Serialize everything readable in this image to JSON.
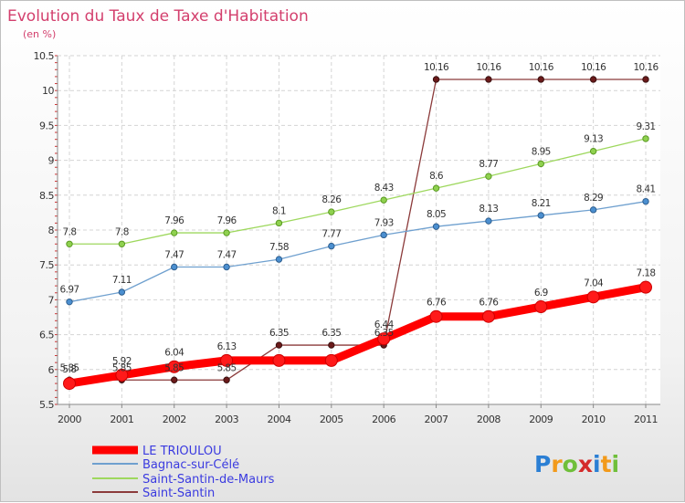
{
  "chart_data": {
    "type": "line",
    "title": "Evolution du Taux de Taxe d'Habitation",
    "subtitle": "(en %)",
    "xlabel": "",
    "ylabel": "",
    "ylim": [
      5.5,
      10.5
    ],
    "yticks": [
      "5.5",
      "6",
      "6.5",
      "7",
      "7.5",
      "8",
      "8.5",
      "9",
      "9.5",
      "10",
      "10.5"
    ],
    "categories": [
      "2000",
      "2001",
      "2002",
      "2003",
      "2004",
      "2005",
      "2006",
      "2007",
      "2008",
      "2009",
      "2010",
      "2011"
    ],
    "grid": true,
    "legend_position": "bottom-left",
    "series": [
      {
        "name": "LE TRIOULOU",
        "color": "#ff0000",
        "values": [
          5.8,
          5.92,
          6.04,
          6.13,
          6.13,
          6.13,
          6.44,
          6.76,
          6.76,
          6.9,
          7.04,
          7.18
        ],
        "labels": [
          "5.8",
          "5.92",
          "6.04",
          "6.13",
          "",
          "",
          "6.44",
          "6.76",
          "6.76",
          "6.9",
          "7.04",
          "7.18"
        ]
      },
      {
        "name": "Bagnac-sur-Célé",
        "color": "#6fa0cf",
        "values": [
          6.97,
          7.11,
          7.47,
          7.47,
          7.58,
          7.77,
          7.93,
          8.05,
          8.13,
          8.21,
          8.29,
          8.41
        ],
        "labels": [
          "6.97",
          "7.11",
          "7.47",
          "7.47",
          "7.58",
          "7.77",
          "7.93",
          "8.05",
          "8.13",
          "8.21",
          "8.29",
          "8.41"
        ]
      },
      {
        "name": "Saint-Santin-de-Maurs",
        "color": "#9ed85e",
        "values": [
          7.8,
          7.8,
          7.96,
          7.96,
          8.1,
          8.26,
          8.43,
          8.6,
          8.77,
          8.95,
          9.13,
          9.31
        ],
        "labels": [
          "7.8",
          "7.8",
          "7.96",
          "7.96",
          "8.1",
          "8.26",
          "8.43",
          "8.6",
          "8.77",
          "8.95",
          "9.13",
          "9.31"
        ]
      },
      {
        "name": "Saint-Santin",
        "color": "#8b3a3a",
        "values": [
          5.85,
          5.85,
          5.85,
          5.85,
          6.35,
          6.35,
          6.35,
          10.16,
          10.16,
          10.16,
          10.16,
          10.16
        ],
        "labels": [
          "5.85",
          "5.85",
          "5.85",
          "5.85",
          "6.35",
          "6.35",
          "6.35",
          "10.16",
          "10.16",
          "10.16",
          "10.16",
          "10.16"
        ]
      }
    ]
  },
  "branding": {
    "logo_letters": [
      "P",
      "r",
      "o",
      "x",
      "i",
      "t",
      "i"
    ],
    "logo_colors": [
      "#2b7fd4",
      "#f29a1b",
      "#6fbf3a",
      "#d42b2b",
      "#2b7fd4",
      "#f29a1b",
      "#6fbf3a"
    ]
  }
}
